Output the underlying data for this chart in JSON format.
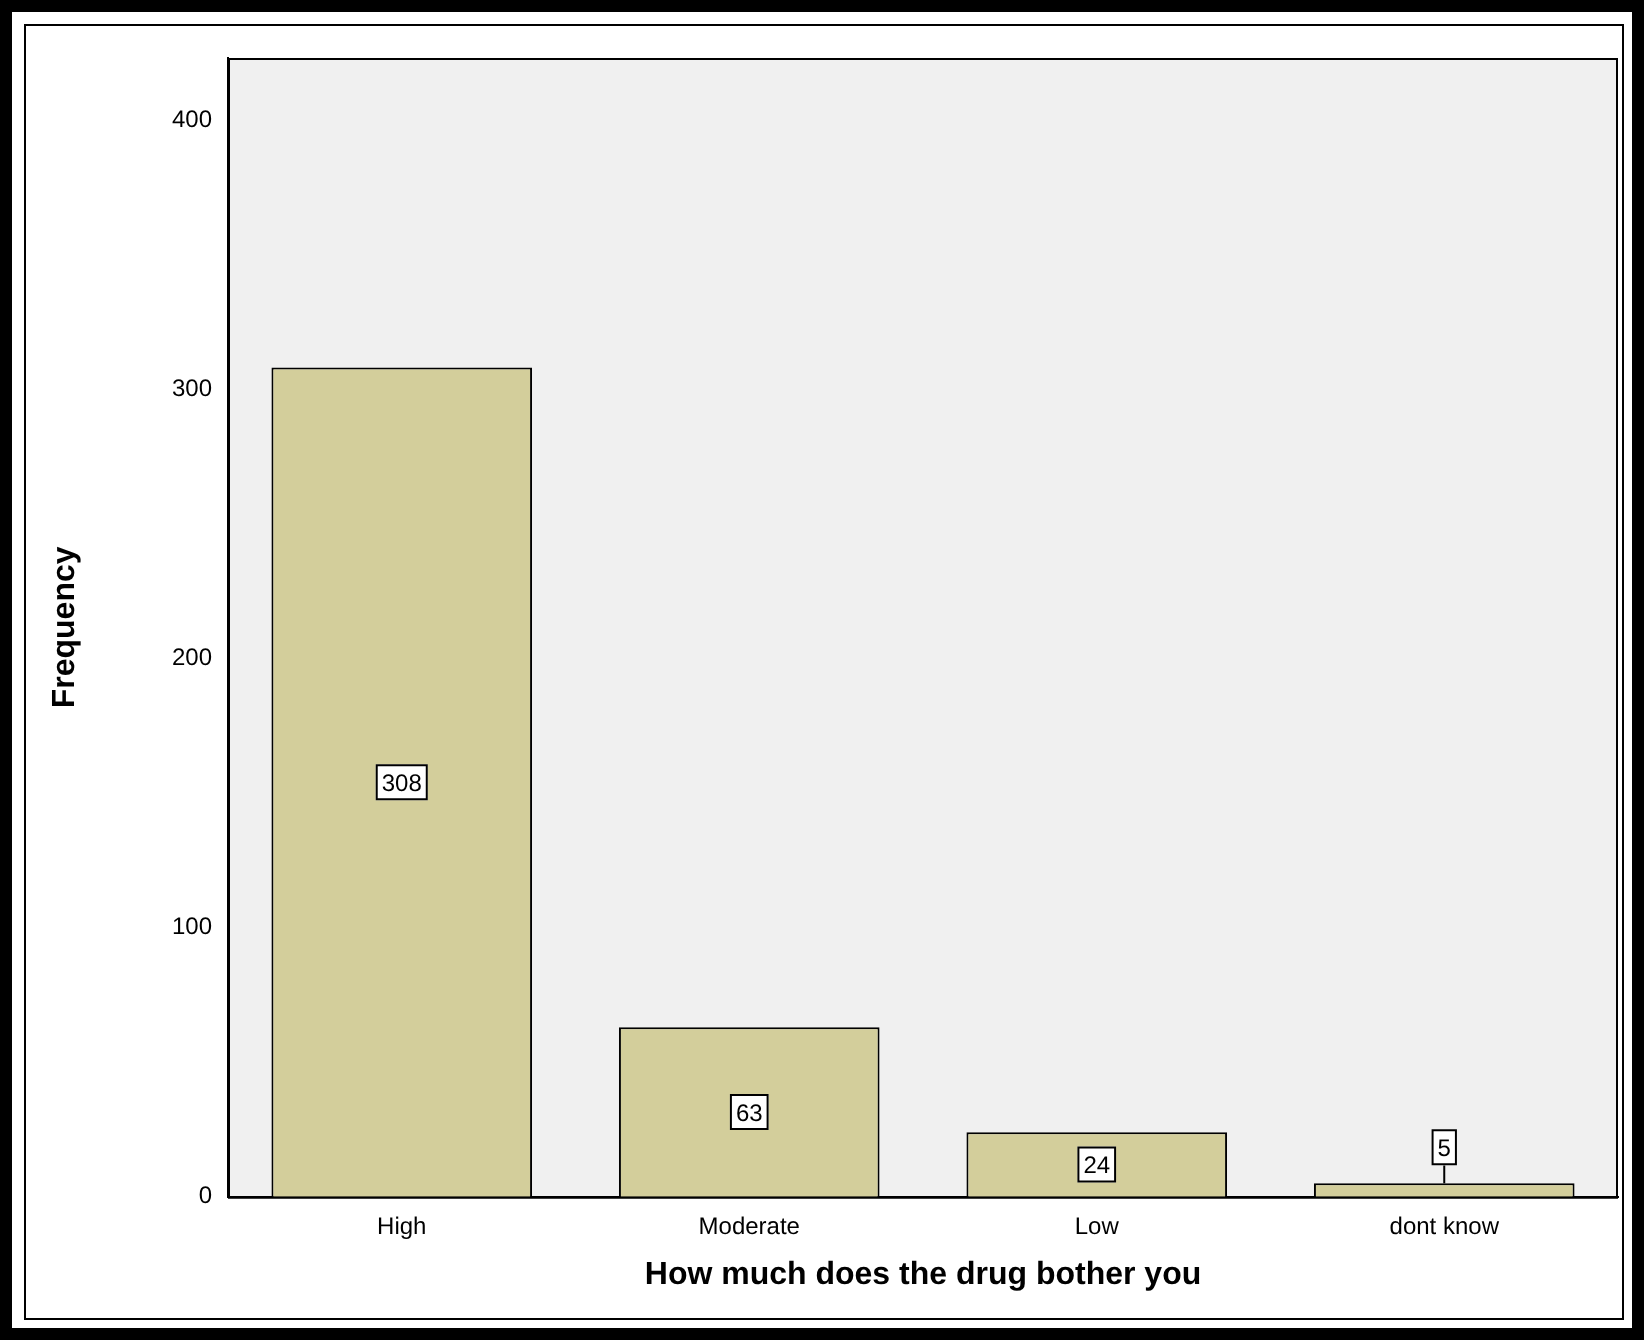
{
  "chart_data": {
    "type": "bar",
    "xlabel": "How much does the drug bother you",
    "ylabel": "Frequency",
    "categories": [
      "High",
      "Moderate",
      "Low",
      "dont know"
    ],
    "values": [
      308,
      63,
      24,
      5
    ],
    "color": "#d3ce9b",
    "ylim": [
      0,
      423
    ],
    "yticks": [
      0,
      100,
      200,
      300,
      400
    ],
    "grid": false,
    "legend": false,
    "data_labels": true
  }
}
